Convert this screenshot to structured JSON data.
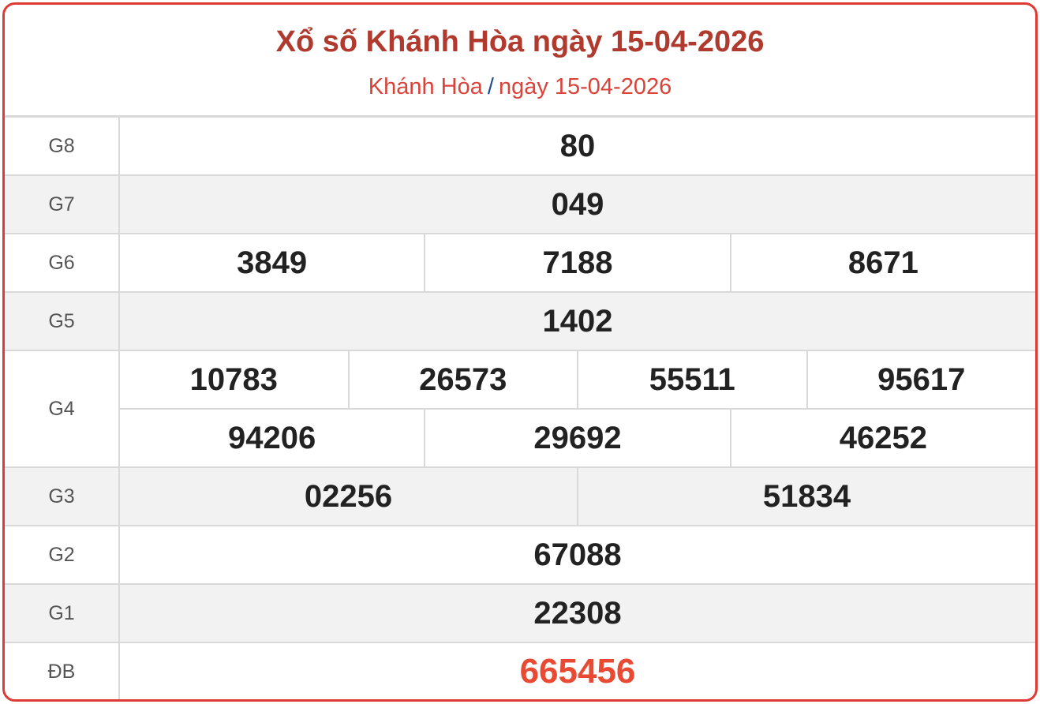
{
  "header": {
    "title": "Xổ số Khánh Hòa ngày 15-04-2026",
    "breadcrumb": {
      "province": "Khánh Hòa",
      "separator": "/",
      "date": "ngày 15-04-2026"
    }
  },
  "colors": {
    "border": "#e03a34",
    "title": "#b03a2e",
    "special": "#e84a33"
  },
  "prizes": [
    {
      "label": "G8",
      "rows": [
        [
          "80"
        ]
      ]
    },
    {
      "label": "G7",
      "rows": [
        [
          "049"
        ]
      ]
    },
    {
      "label": "G6",
      "rows": [
        [
          "3849",
          "7188",
          "8671"
        ]
      ]
    },
    {
      "label": "G5",
      "rows": [
        [
          "1402"
        ]
      ]
    },
    {
      "label": "G4",
      "rows": [
        [
          "10783",
          "26573",
          "55511",
          "95617"
        ],
        [
          "94206",
          "29692",
          "46252"
        ]
      ]
    },
    {
      "label": "G3",
      "rows": [
        [
          "02256",
          "51834"
        ]
      ]
    },
    {
      "label": "G2",
      "rows": [
        [
          "67088"
        ]
      ]
    },
    {
      "label": "G1",
      "rows": [
        [
          "22308"
        ]
      ]
    },
    {
      "label": "ĐB",
      "rows": [
        [
          "665456"
        ]
      ]
    }
  ]
}
